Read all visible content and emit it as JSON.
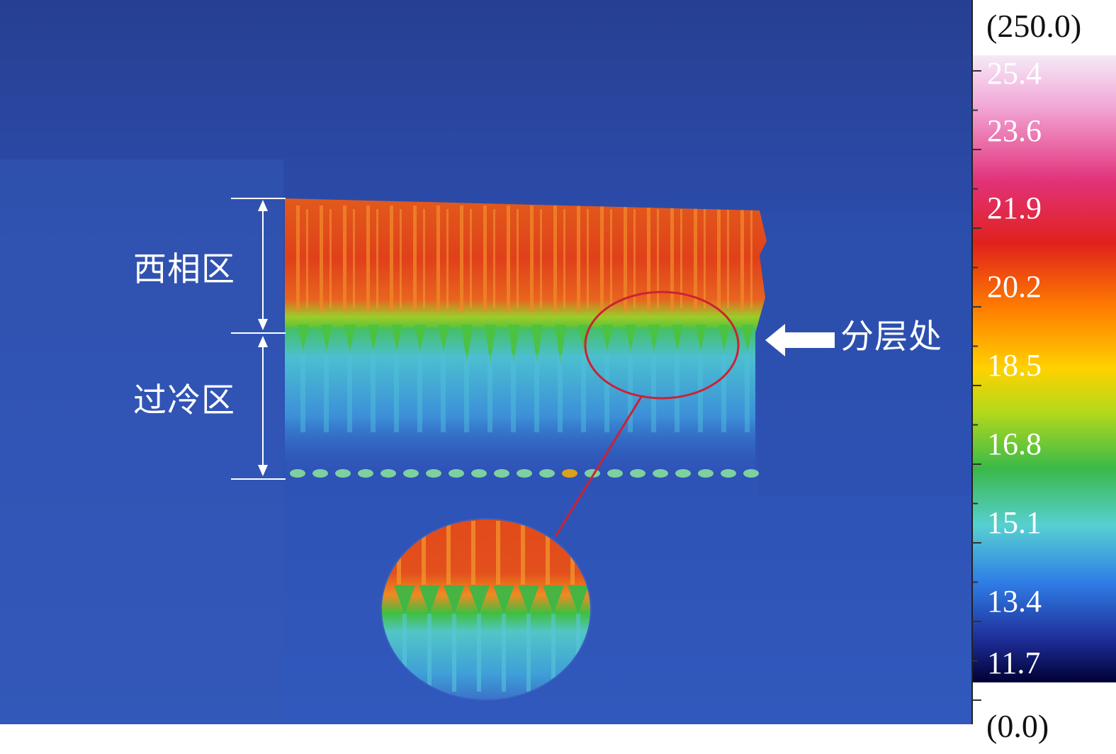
{
  "figure": {
    "colorbar": {
      "max_label": "(250.0)",
      "min_label": "(0.0)",
      "ticks": [
        "25.4",
        "23.6",
        "21.9",
        "20.2",
        "18.5",
        "16.8",
        "15.1",
        "13.4",
        "11.7"
      ],
      "palette": [
        "#000033",
        "#1f2f9a",
        "#2f7ee6",
        "#57d0d2",
        "#39b94a",
        "#b2d91b",
        "#ffd200",
        "#ff7a00",
        "#e0221c",
        "#e2327a",
        "#f2a8d8",
        "#f5eaf7"
      ]
    },
    "annotations": {
      "two_phase_zone": "西相区",
      "subcooled_zone": "过冷区",
      "stratification": "分层处"
    },
    "colors": {
      "background": "#2b4fb0",
      "hot": "#e2461c",
      "interface": "#4cc23c",
      "cool": "#4fb6dd",
      "circle": "#cc2233"
    }
  }
}
